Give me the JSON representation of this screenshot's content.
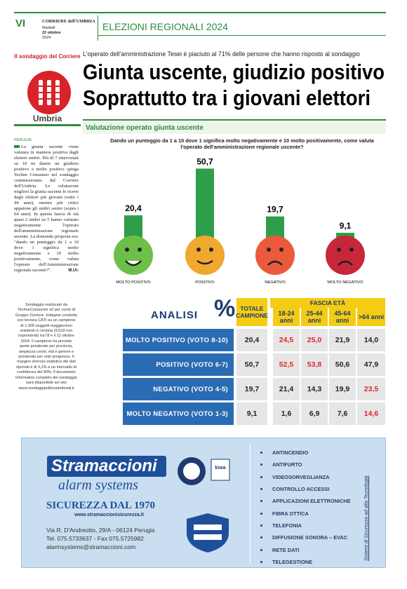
{
  "header": {
    "page_number": "VI",
    "masthead": "CORRIERE dell'UMBRIA",
    "day": "Martedì",
    "date": "22 ottobre",
    "year": "2024",
    "section": "ELEZIONI REGIONALI 2024"
  },
  "sidebar": {
    "kicker": "Il sondaggio del Corriere",
    "region": "Umbria"
  },
  "headline": {
    "summary": "L'operato dell'amministrazione Tesei è piaciuto al 71% delle persone che hanno risposto al sondaggio",
    "lines": [
      "Giunta uscente, giudizio positivo",
      "Soprattutto tra i giovani elettori"
    ]
  },
  "article": {
    "subsection": "Valutazione operato giunta uscente",
    "dateline": "PERUGIA",
    "body": "La giunta uscente viene valutata in maniera positiva dagli elettori umbri. Più di 7 intervistati su 10 ne danno un giudizio positivo o molto positivo spiega Techne Consumer nel sondaggio commissionato dal Corriere dell'Umbria. Le valutazioni migliori la giunta uscente le riceve dagli elettori più giovani (sotto i 44 anni), mentre più critici appaiono gli umbri senior (sopra i 64 anni). In questa fascia di età quasi 2 umbri su 5 hanno valutato negativamente l'operato dell'amministrazione regionale uscente. La domanda proposta era: \"dando un punteggio da 1 a 10 dove 1 significa molto negativamente e 10 molto positivamente, come valuta l'operato dell'Amministrazione regionale uscente?\".",
    "signature": "M.Ur."
  },
  "chart": {
    "type": "bar",
    "title": "Dando un punteggio da 1 a 10 dove 1 significa molto negativamente e 10 molto positivamente, come valuta l'operato dell'amministrazione regionale uscente?",
    "categories": [
      "MOLTO POSITIVO",
      "POSITIVO",
      "NEGATIVO",
      "MOLTO NEGATIVO"
    ],
    "values": [
      20.4,
      50.7,
      19.7,
      9.1
    ],
    "value_labels": [
      "20,4",
      "50,7",
      "19,7",
      "9,1"
    ],
    "color": "#2e9e4a",
    "face_colors": [
      "#6cc04a",
      "#f0a92e",
      "#ec5a3c",
      "#c8273a"
    ]
  },
  "methodology": "Sondaggio realizzato da TechneConsumer srl per conto di Gruppo Corriere. Indagine condotta con tecnica CATI su un campione di 1.000 soggetti maggiorenni residenti in Umbria (9.019 non rispondenti) tra l'8 e il 12 ottobre 2024. Il campione ha previsto quote ponderate per provincia, ampiezza centri, età e genere e ponderato per voto pregresso. Il margine d'errore statistico dei dati riportati è di 3,1% a un intervallo di confidenza del 90%. Il documento informativo completo del sondaggio sarà disponibile sul sito www.sondaggipoliticoelettorali.it",
  "table": {
    "title": "ANALISI",
    "symbol": "%",
    "total_header": "TOTALE CAMPIONE",
    "age_header": "FASCIA ETÀ",
    "age_columns": [
      "18-24 anni",
      "25-44 anni",
      "45-64 anni",
      ">64 anni"
    ],
    "rows": [
      {
        "label": "MOLTO POSITIVO (VOTO 8-10)",
        "cells": [
          "20,4",
          "24,5",
          "25,0",
          "21,9",
          "14,0"
        ],
        "highlight": [
          1,
          2
        ]
      },
      {
        "label": "POSITIVO (VOTO 6-7)",
        "cells": [
          "50,7",
          "52,5",
          "53,8",
          "50,6",
          "47,9"
        ],
        "highlight": [
          1,
          2
        ]
      },
      {
        "label": "NEGATIVO (VOTO 4-5)",
        "cells": [
          "19,7",
          "21,4",
          "14,3",
          "19,9",
          "23,5"
        ],
        "highlight": [
          4
        ]
      },
      {
        "label": "MOLTO NEGATIVO (VOTO 1-3)",
        "cells": [
          "9,1",
          "1,6",
          "6,9",
          "7,6",
          "14,6"
        ],
        "highlight": [
          4
        ]
      }
    ],
    "highlight_color": "#e0262d"
  },
  "ad": {
    "brand": "Stramaccioni",
    "brand_sub": "alarm systems",
    "slogan": "SICUREZZA DAL 1970",
    "website": "www.stramaccionisicurezza.it",
    "address": "Via R. D'Andreotto, 29/A - 06124 Perugia",
    "phone": "Tel. 075.5733637 - Fax 075.5725982",
    "email": "alarmsystems@stramaccioni.com",
    "services": [
      "ANTINCENDIO",
      "ANTIFURTO",
      "VIDEOSORVEGLIANZA",
      "CONTROLLO ACCESSI",
      "APPLICAZIONI ELETTRONICHE",
      "FIBRA OTTICA",
      "TELEFONIA",
      "DIFFUSIONE SONORA – EVAC",
      "RETE DATI",
      "TELEGESTIONE"
    ],
    "tagline": "Sistemi di Sicurezza ad alta Tecnologia"
  }
}
